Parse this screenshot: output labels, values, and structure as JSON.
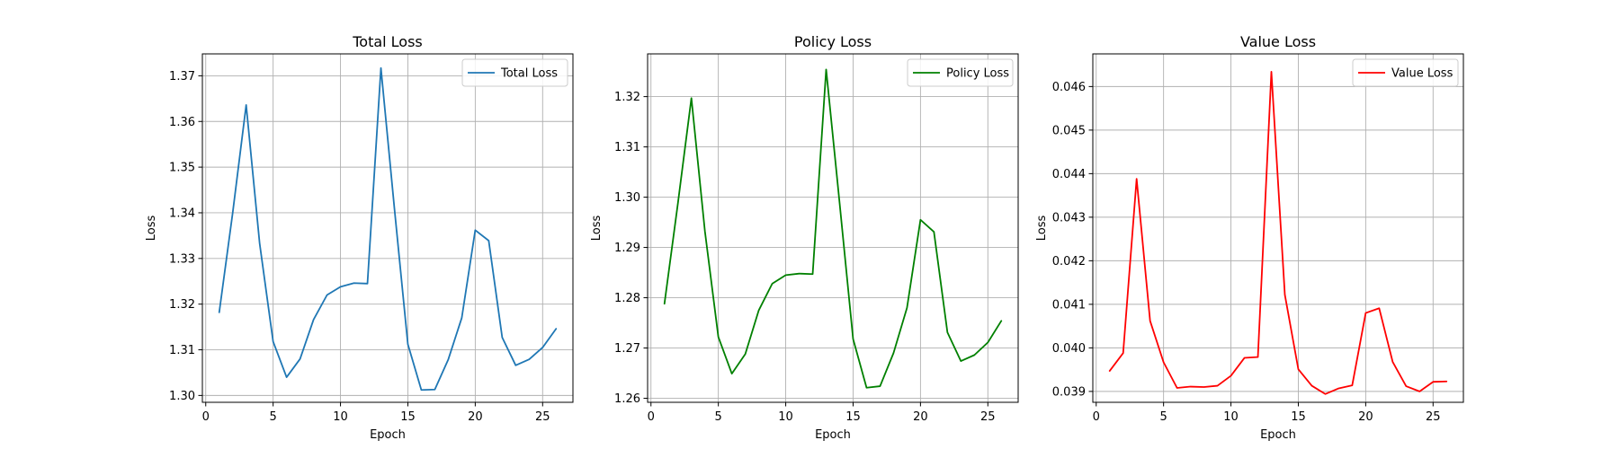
{
  "chart_data": [
    {
      "type": "line",
      "title": "Total Loss",
      "xlabel": "Epoch",
      "ylabel": "Loss",
      "xlim": [
        -0.25,
        27.25
      ],
      "ylim": [
        1.2985,
        1.3748
      ],
      "xticks": [
        0,
        5,
        10,
        15,
        20,
        25
      ],
      "yticks": [
        1.3,
        1.31,
        1.32,
        1.33,
        1.34,
        1.35,
        1.36,
        1.37
      ],
      "ytick_labels": [
        "1.30",
        "1.31",
        "1.32",
        "1.33",
        "1.34",
        "1.35",
        "1.36",
        "1.37"
      ],
      "grid": true,
      "legend_position": "upper right",
      "series": [
        {
          "name": "Total Loss",
          "color": "#1f77b4",
          "x": [
            1,
            2,
            3,
            4,
            5,
            6,
            7,
            8,
            9,
            10,
            11,
            12,
            13,
            14,
            15,
            16,
            17,
            18,
            19,
            20,
            21,
            22,
            23,
            24,
            25,
            26
          ],
          "values": [
            1.3182,
            1.34,
            1.3636,
            1.3333,
            1.3118,
            1.304,
            1.308,
            1.3166,
            1.322,
            1.3238,
            1.3246,
            1.3245,
            1.3717,
            1.341,
            1.3112,
            1.3012,
            1.3013,
            1.3079,
            1.317,
            1.3362,
            1.3339,
            1.3127,
            1.3066,
            1.3079,
            1.3105,
            1.3146
          ]
        }
      ]
    },
    {
      "type": "line",
      "title": "Policy Loss",
      "xlabel": "Epoch",
      "ylabel": "Loss",
      "xlim": [
        -0.25,
        27.25
      ],
      "ylim": [
        1.2592,
        1.3285
      ],
      "xticks": [
        0,
        5,
        10,
        15,
        20,
        25
      ],
      "yticks": [
        1.26,
        1.27,
        1.28,
        1.29,
        1.3,
        1.31,
        1.32
      ],
      "ytick_labels": [
        "1.26",
        "1.27",
        "1.28",
        "1.29",
        "1.30",
        "1.31",
        "1.32"
      ],
      "grid": true,
      "legend_position": "upper right",
      "series": [
        {
          "name": "Policy Loss",
          "color": "#008000",
          "x": [
            1,
            2,
            3,
            4,
            5,
            6,
            7,
            8,
            9,
            10,
            11,
            12,
            13,
            14,
            15,
            16,
            17,
            18,
            19,
            20,
            21,
            22,
            23,
            24,
            25,
            26
          ],
          "values": [
            1.2788,
            1.2988,
            1.3197,
            1.2933,
            1.2722,
            1.2649,
            1.2688,
            1.2775,
            1.2828,
            1.2845,
            1.2848,
            1.2847,
            1.3254,
            1.2988,
            1.2718,
            1.2621,
            1.2624,
            1.269,
            1.278,
            1.2955,
            1.2931,
            1.2731,
            1.2674,
            1.2686,
            1.2711,
            1.2754
          ]
        }
      ]
    },
    {
      "type": "line",
      "title": "Value Loss",
      "xlabel": "Epoch",
      "ylabel": "Loss",
      "xlim": [
        -0.25,
        27.25
      ],
      "ylim": [
        0.03875,
        0.04675
      ],
      "xticks": [
        0,
        5,
        10,
        15,
        20,
        25
      ],
      "yticks": [
        0.039,
        0.04,
        0.041,
        0.042,
        0.043,
        0.044,
        0.045,
        0.046
      ],
      "ytick_labels": [
        "0.039",
        "0.040",
        "0.041",
        "0.042",
        "0.043",
        "0.044",
        "0.045",
        "0.046"
      ],
      "grid": true,
      "legend_position": "upper right",
      "series": [
        {
          "name": "Value Loss",
          "color": "#ff0000",
          "x": [
            1,
            2,
            3,
            4,
            5,
            6,
            7,
            8,
            9,
            10,
            11,
            12,
            13,
            14,
            15,
            16,
            17,
            18,
            19,
            20,
            21,
            22,
            23,
            24,
            25,
            26
          ],
          "values": [
            0.03947,
            0.03988,
            0.04388,
            0.04062,
            0.03967,
            0.03908,
            0.03911,
            0.0391,
            0.03913,
            0.03936,
            0.03977,
            0.03979,
            0.04634,
            0.04122,
            0.03951,
            0.03913,
            0.03894,
            0.03907,
            0.03914,
            0.0408,
            0.04091,
            0.03968,
            0.03912,
            0.039,
            0.03922,
            0.03923
          ]
        }
      ]
    }
  ]
}
